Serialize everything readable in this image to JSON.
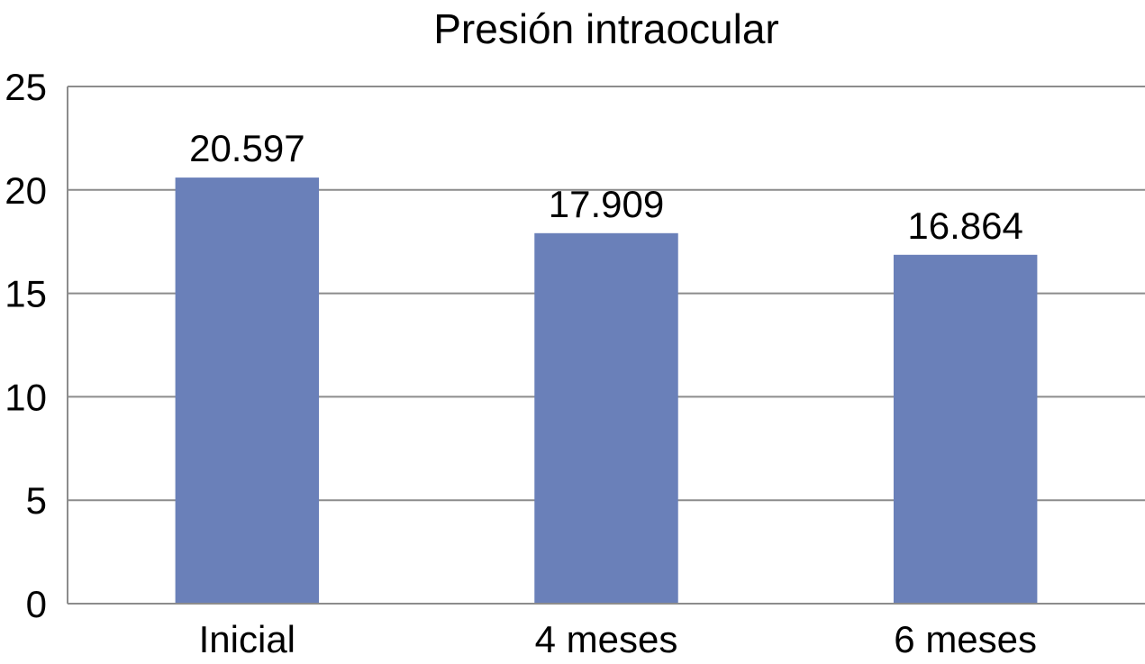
{
  "chart_data": {
    "type": "bar",
    "title": "Presión intraocular",
    "xlabel": "",
    "ylabel": "",
    "categories": [
      "Inicial",
      "4 meses",
      "6 meses"
    ],
    "values": [
      20.597,
      17.909,
      16.864
    ],
    "value_labels": [
      "20.597",
      "17.909",
      "16.864"
    ],
    "ylim": [
      0,
      25
    ],
    "yticks": [
      0,
      5,
      10,
      15,
      20,
      25
    ],
    "grid": true,
    "legend": "none",
    "colors": {
      "bar": "#6a80b9",
      "grid": "#8c8c8c",
      "axis": "#8c8c8c"
    }
  }
}
